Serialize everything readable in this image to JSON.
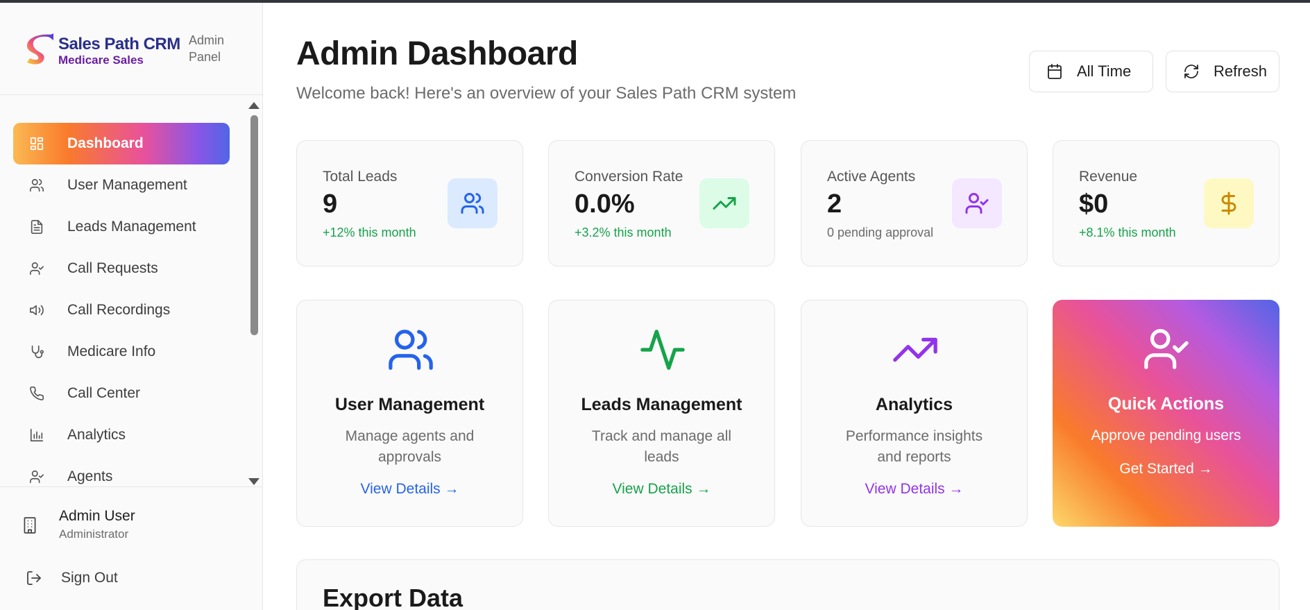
{
  "sidebar": {
    "brand_name": "Sales Path CRM",
    "brand_sub": "Medicare Sales",
    "panel_label": "Admin Panel",
    "items": [
      {
        "label": "Dashboard",
        "icon": "dashboard-grid-icon",
        "active": true
      },
      {
        "label": "User Management",
        "icon": "users-icon"
      },
      {
        "label": "Leads Management",
        "icon": "document-icon"
      },
      {
        "label": "Call Requests",
        "icon": "user-check-icon"
      },
      {
        "label": "Call Recordings",
        "icon": "speaker-icon"
      },
      {
        "label": "Medicare Info",
        "icon": "stethoscope-icon"
      },
      {
        "label": "Call Center",
        "icon": "phone-icon"
      },
      {
        "label": "Analytics",
        "icon": "bar-chart-icon"
      },
      {
        "label": "Agents",
        "icon": "user-check-icon"
      }
    ],
    "user_name": "Admin User",
    "user_role": "Administrator",
    "signout_label": "Sign Out"
  },
  "header": {
    "title": "Admin Dashboard",
    "subtitle": "Welcome back! Here's an overview of your Sales Path CRM system",
    "time_filter_label": "All Time",
    "refresh_label": "Refresh"
  },
  "stats": [
    {
      "label": "Total Leads",
      "value": "9",
      "note": "+12% this month",
      "icon": "users-icon",
      "icon_color": "#2563eb",
      "icon_bg": "#dbeafe"
    },
    {
      "label": "Conversion Rate",
      "value": "0.0%",
      "note": "+3.2% this month",
      "icon": "trending-up-icon",
      "icon_color": "#16a34a",
      "icon_bg": "#dcfce7"
    },
    {
      "label": "Active Agents",
      "value": "2",
      "note": "0 pending approval",
      "icon": "user-check-icon",
      "icon_color": "#9333ea",
      "icon_bg": "#f3e8ff"
    },
    {
      "label": "Revenue",
      "value": "$0",
      "note": "+8.1% this month",
      "icon": "dollar-icon",
      "icon_color": "#ca8a04",
      "icon_bg": "#fef9c3"
    }
  ],
  "cards": [
    {
      "title": "User Management",
      "desc": "Manage agents and approvals",
      "link": "View Details →",
      "color": "#2563eb",
      "icon": "users-icon"
    },
    {
      "title": "Leads Management",
      "desc": "Track and manage all leads",
      "link": "View Details →",
      "color": "#16a34a",
      "icon": "activity-icon"
    },
    {
      "title": "Analytics",
      "desc": "Performance insights and reports",
      "link": "View Details →",
      "color": "#9333ea",
      "icon": "trending-up-icon"
    },
    {
      "title": "Quick Actions",
      "desc": "Approve pending users",
      "link": "Get Started →",
      "color": "#ffffff",
      "icon": "user-check-icon"
    }
  ],
  "export": {
    "title": "Export Data"
  }
}
